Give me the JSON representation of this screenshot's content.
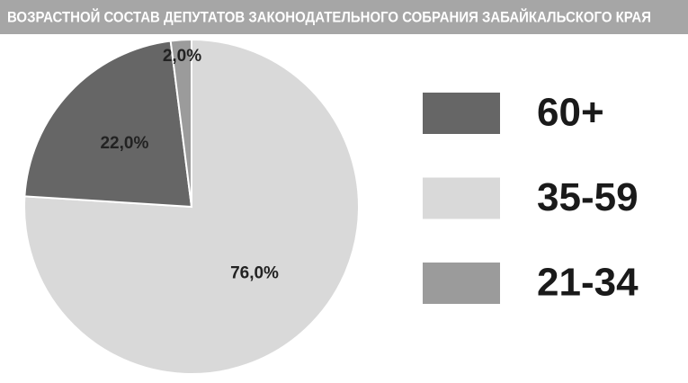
{
  "chart_data": {
    "type": "pie",
    "title": "ВОЗРАСТНОЙ СОСТАВ ДЕПУТАТОВ ЗАКОНОДАТЕЛЬНОГО СОБРАНИЯ ЗАБАЙКАЛЬСКОГО КРАЯ",
    "categories": [
      "60+",
      "35-59",
      "21-34"
    ],
    "values": [
      22,
      76,
      2
    ],
    "value_labels": [
      "22,0%",
      "76,0%",
      "2,0%"
    ],
    "colors": [
      "#666666",
      "#d9d9d9",
      "#9b9b9b"
    ]
  }
}
